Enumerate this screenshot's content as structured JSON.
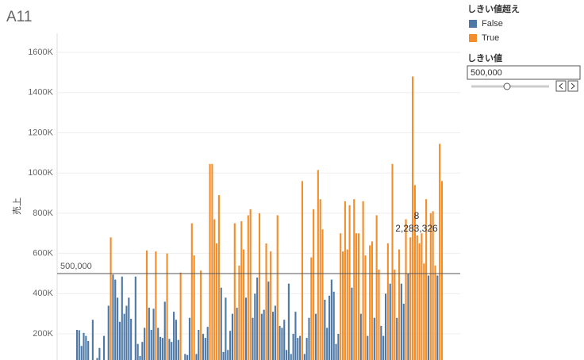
{
  "chart_data": {
    "type": "bar",
    "title": "A11",
    "y_label": "売上",
    "legend_title": "しきい値超え",
    "series": [
      {
        "name": "False",
        "color": "#4e79a7"
      },
      {
        "name": "True",
        "color": "#f28e2b"
      }
    ],
    "parameter_title": "しきい値",
    "reference_line": {
      "value": 500000,
      "label": "500,000"
    },
    "annotations": [
      "8",
      "2,283,326"
    ],
    "ylim": [
      70000,
      1695000
    ],
    "yticks": [
      {
        "value": 200000,
        "label": "200K"
      },
      {
        "value": 400000,
        "label": "400K"
      },
      {
        "value": 600000,
        "label": "600K"
      },
      {
        "value": 800000,
        "label": "800K"
      },
      {
        "value": 1000000,
        "label": "1000K"
      },
      {
        "value": 1200000,
        "label": "1200K"
      },
      {
        "value": 1400000,
        "label": "1400K"
      },
      {
        "value": 1600000,
        "label": "1600K"
      }
    ],
    "grid": true,
    "values": [
      220000,
      218000,
      140000,
      205000,
      190000,
      165000,
      null,
      270000,
      null,
      80000,
      130000,
      null,
      190000,
      null,
      340000,
      680000,
      495000,
      470000,
      380000,
      260000,
      485000,
      300000,
      340000,
      380000,
      275000,
      null,
      485000,
      150000,
      90000,
      160000,
      230000,
      615000,
      330000,
      220000,
      325000,
      610000,
      230000,
      185000,
      180000,
      360000,
      600000,
      175000,
      160000,
      310000,
      270000,
      170000,
      505000,
      null,
      100000,
      95000,
      280000,
      750000,
      590000,
      100000,
      220000,
      515000,
      200000,
      180000,
      235000,
      1045000,
      1045000,
      770000,
      650000,
      890000,
      430000,
      110000,
      380000,
      120000,
      215000,
      300000,
      750000,
      330000,
      540000,
      760000,
      620000,
      380000,
      790000,
      820000,
      280000,
      400000,
      480000,
      800000,
      300000,
      320000,
      650000,
      460000,
      610000,
      310000,
      340000,
      790000,
      240000,
      230000,
      270000,
      120000,
      450000,
      100000,
      200000,
      310000,
      180000,
      190000,
      960000,
      100000,
      180000,
      280000,
      580000,
      820000,
      300000,
      1015000,
      870000,
      720000,
      370000,
      230000,
      390000,
      470000,
      410000,
      150000,
      200000,
      700000,
      610000,
      860000,
      620000,
      840000,
      430000,
      870000,
      700000,
      700000,
      300000,
      860000,
      590000,
      190000,
      640000,
      660000,
      280000,
      790000,
      520000,
      240000,
      190000,
      400000,
      650000,
      450000,
      1045000,
      520000,
      280000,
      620000,
      450000,
      350000,
      770000,
      500000,
      680000,
      1480000,
      940000,
      690000,
      650000,
      700000,
      550000,
      870000,
      490000,
      800000,
      810000,
      540000,
      490000,
      1145000,
      960000
    ]
  }
}
